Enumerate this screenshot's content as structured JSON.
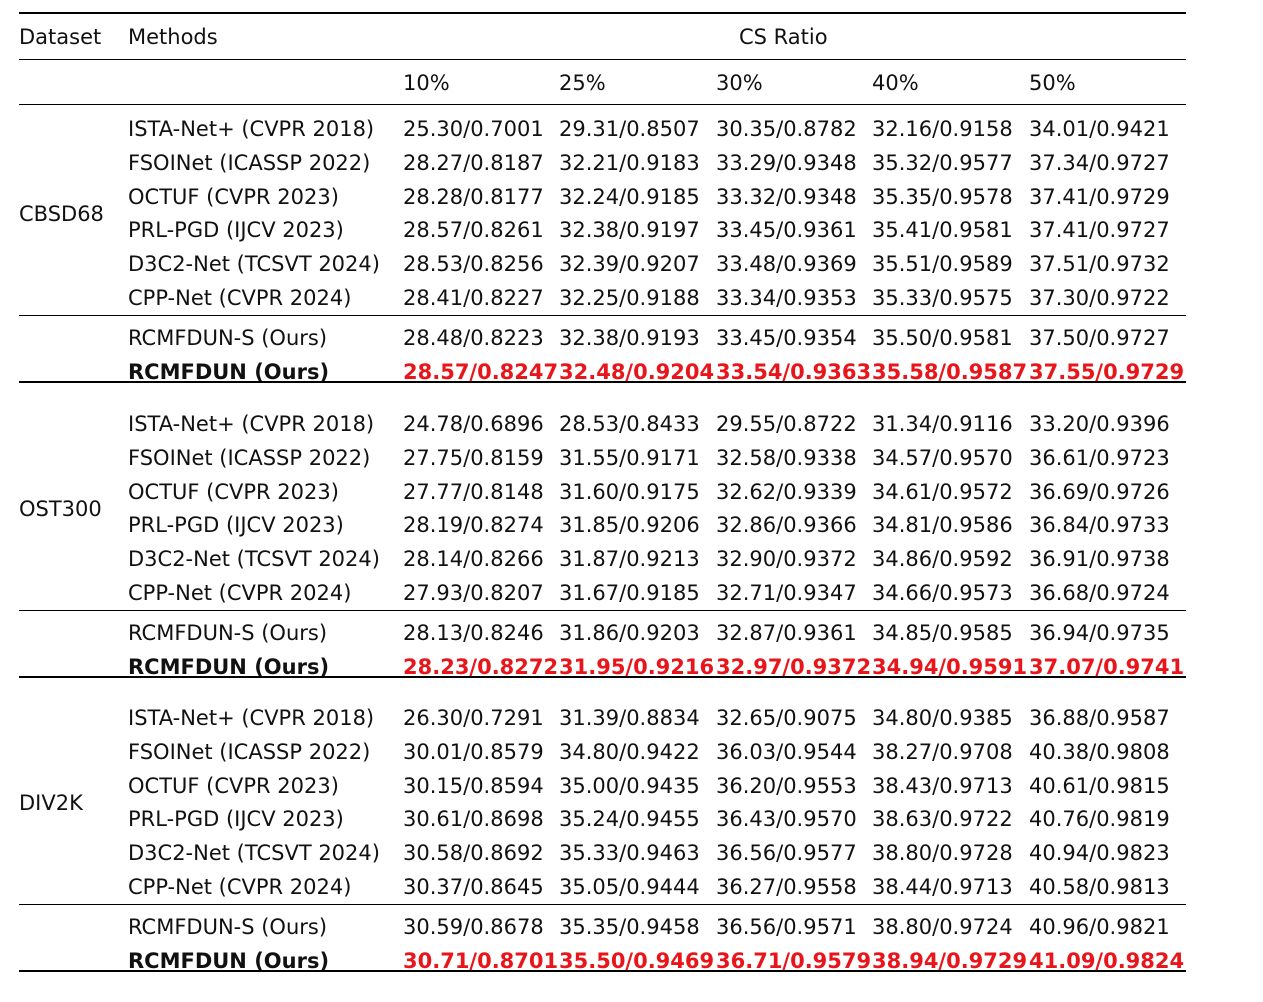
{
  "header": {
    "dataset": "Dataset",
    "methods": "Methods",
    "cs_ratio": "CS Ratio",
    "ratios": [
      "10%",
      "25%",
      "30%",
      "40%",
      "50%"
    ]
  },
  "groups": [
    {
      "dataset": "CBSD68",
      "baselines": [
        {
          "method": "ISTA-Net+ (CVPR 2018)",
          "values": [
            "25.30/0.7001",
            "29.31/0.8507",
            "30.35/0.8782",
            "32.16/0.9158",
            "34.01/0.9421"
          ]
        },
        {
          "method": "FSOINet (ICASSP 2022)",
          "values": [
            "28.27/0.8187",
            "32.21/0.9183",
            "33.29/0.9348",
            "35.32/0.9577",
            "37.34/0.9727"
          ]
        },
        {
          "method": "OCTUF (CVPR 2023)",
          "values": [
            "28.28/0.8177",
            "32.24/0.9185",
            "33.32/0.9348",
            "35.35/0.9578",
            "37.41/0.9729"
          ]
        },
        {
          "method": "PRL-PGD (IJCV 2023)",
          "values": [
            "28.57/0.8261",
            "32.38/0.9197",
            "33.45/0.9361",
            "35.41/0.9581",
            "37.41/0.9727"
          ]
        },
        {
          "method": "D3C2-Net (TCSVT 2024)",
          "values": [
            "28.53/0.8256",
            "32.39/0.9207",
            "33.48/0.9369",
            "35.51/0.9589",
            "37.51/0.9732"
          ]
        },
        {
          "method": "CPP-Net (CVPR 2024)",
          "values": [
            "28.41/0.8227",
            "32.25/0.9188",
            "33.34/0.9353",
            "35.33/0.9575",
            "37.30/0.9722"
          ]
        }
      ],
      "ours": [
        {
          "method": "RCMFDUN-S (Ours)",
          "values": [
            "28.48/0.8223",
            "32.38/0.9193",
            "33.45/0.9354",
            "35.50/0.9581",
            "37.50/0.9727"
          ]
        },
        {
          "method": "RCMFDUN (Ours)",
          "values": [
            "28.57/0.8247",
            "32.48/0.9204",
            "33.54/0.9363",
            "35.58/0.9587",
            "37.55/0.9729"
          ]
        }
      ]
    },
    {
      "dataset": "OST300",
      "baselines": [
        {
          "method": "ISTA-Net+ (CVPR 2018)",
          "values": [
            "24.78/0.6896",
            "28.53/0.8433",
            "29.55/0.8722",
            "31.34/0.9116",
            "33.20/0.9396"
          ]
        },
        {
          "method": "FSOINet (ICASSP 2022)",
          "values": [
            "27.75/0.8159",
            "31.55/0.9171",
            "32.58/0.9338",
            "34.57/0.9570",
            "36.61/0.9723"
          ]
        },
        {
          "method": "OCTUF (CVPR 2023)",
          "values": [
            "27.77/0.8148",
            "31.60/0.9175",
            "32.62/0.9339",
            "34.61/0.9572",
            "36.69/0.9726"
          ]
        },
        {
          "method": "PRL-PGD (IJCV 2023)",
          "values": [
            "28.19/0.8274",
            "31.85/0.9206",
            "32.86/0.9366",
            "34.81/0.9586",
            "36.84/0.9733"
          ]
        },
        {
          "method": "D3C2-Net (TCSVT 2024)",
          "values": [
            "28.14/0.8266",
            "31.87/0.9213",
            "32.90/0.9372",
            "34.86/0.9592",
            "36.91/0.9738"
          ]
        },
        {
          "method": "CPP-Net (CVPR 2024)",
          "values": [
            "27.93/0.8207",
            "31.67/0.9185",
            "32.71/0.9347",
            "34.66/0.9573",
            "36.68/0.9724"
          ]
        }
      ],
      "ours": [
        {
          "method": "RCMFDUN-S (Ours)",
          "values": [
            "28.13/0.8246",
            "31.86/0.9203",
            "32.87/0.9361",
            "34.85/0.9585",
            "36.94/0.9735"
          ]
        },
        {
          "method": "RCMFDUN (Ours)",
          "values": [
            "28.23/0.8272",
            "31.95/0.9216",
            "32.97/0.9372",
            "34.94/0.9591",
            "37.07/0.9741"
          ]
        }
      ]
    },
    {
      "dataset": "DIV2K",
      "baselines": [
        {
          "method": "ISTA-Net+ (CVPR 2018)",
          "values": [
            "26.30/0.7291",
            "31.39/0.8834",
            "32.65/0.9075",
            "34.80/0.9385",
            "36.88/0.9587"
          ]
        },
        {
          "method": "FSOINet (ICASSP 2022)",
          "values": [
            "30.01/0.8579",
            "34.80/0.9422",
            "36.03/0.9544",
            "38.27/0.9708",
            "40.38/0.9808"
          ]
        },
        {
          "method": "OCTUF (CVPR 2023)",
          "values": [
            "30.15/0.8594",
            "35.00/0.9435",
            "36.20/0.9553",
            "38.43/0.9713",
            "40.61/0.9815"
          ]
        },
        {
          "method": "PRL-PGD (IJCV 2023)",
          "values": [
            "30.61/0.8698",
            "35.24/0.9455",
            "36.43/0.9570",
            "38.63/0.9722",
            "40.76/0.9819"
          ]
        },
        {
          "method": "D3C2-Net (TCSVT 2024)",
          "values": [
            "30.58/0.8692",
            "35.33/0.9463",
            "36.56/0.9577",
            "38.80/0.9728",
            "40.94/0.9823"
          ]
        },
        {
          "method": "CPP-Net (CVPR 2024)",
          "values": [
            "30.37/0.8645",
            "35.05/0.9444",
            "36.27/0.9558",
            "38.44/0.9713",
            "40.58/0.9813"
          ]
        }
      ],
      "ours": [
        {
          "method": "RCMFDUN-S (Ours)",
          "values": [
            "30.59/0.8678",
            "35.35/0.9458",
            "36.56/0.9571",
            "38.80/0.9724",
            "40.96/0.9821"
          ]
        },
        {
          "method": "RCMFDUN (Ours)",
          "values": [
            "30.71/0.8701",
            "35.50/0.9469",
            "36.71/0.9579",
            "38.94/0.9729",
            "41.09/0.9824"
          ]
        }
      ]
    }
  ],
  "colors": {
    "best": "#e8161b",
    "rule": "#000000"
  }
}
